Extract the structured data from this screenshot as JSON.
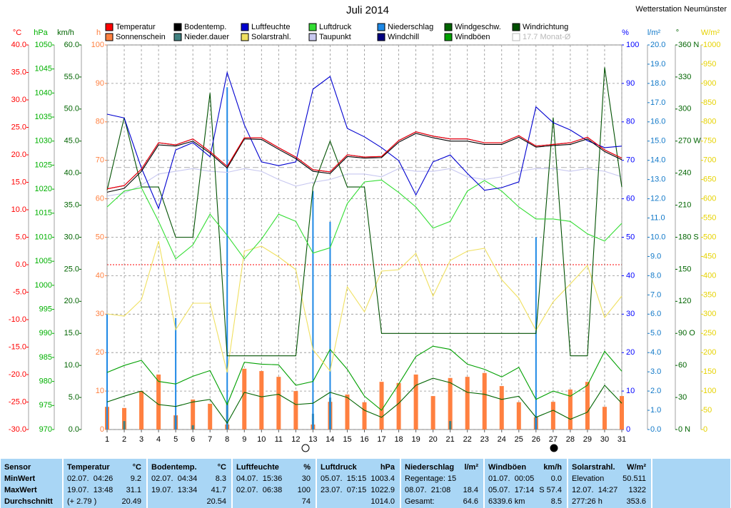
{
  "chart_data": {
    "type": "line",
    "title": "Juli 2014",
    "subtitle": "Wetterstation Neumünster",
    "x": [
      1,
      2,
      3,
      4,
      5,
      6,
      7,
      8,
      9,
      10,
      11,
      12,
      13,
      14,
      15,
      16,
      17,
      18,
      19,
      20,
      21,
      22,
      23,
      24,
      25,
      26,
      27,
      28,
      29,
      30,
      31
    ],
    "xlim": [
      1,
      31
    ],
    "axes": [
      {
        "unit": "°C",
        "color": "#ff0000",
        "lim": [
          -30,
          40
        ],
        "zero_line": true,
        "ticks": [
          {
            "value": -30,
            "label": "-30.0"
          },
          {
            "value": -25,
            "label": "-25.0"
          },
          {
            "value": -20,
            "label": "-20.0"
          },
          {
            "value": -15,
            "label": "-15.0"
          },
          {
            "value": -10,
            "label": "-10.0"
          },
          {
            "value": -5,
            "label": "-5.0"
          },
          {
            "value": 0,
            "label": "0.0"
          },
          {
            "value": 5,
            "label": "5.0"
          },
          {
            "value": 10,
            "label": "10.0"
          },
          {
            "value": 15,
            "label": "15.0"
          },
          {
            "value": 20,
            "label": "20.0"
          },
          {
            "value": 25,
            "label": "25.0"
          },
          {
            "value": 30,
            "label": "30.0"
          },
          {
            "value": 35,
            "label": "35.0"
          },
          {
            "value": 40,
            "label": "40.0"
          }
        ]
      },
      {
        "unit": "hPa",
        "color": "#00b000",
        "lim": [
          970,
          1050
        ],
        "ticks": [
          970,
          975,
          980,
          985,
          990,
          995,
          1000,
          1005,
          1010,
          1015,
          1020,
          1025,
          1030,
          1035,
          1040,
          1045,
          1050
        ]
      },
      {
        "unit": "km/h",
        "color": "#006400",
        "lim": [
          0,
          60
        ],
        "ticks": [
          {
            "value": 0,
            "label": "0.0"
          },
          {
            "value": 5,
            "label": "5.0"
          },
          {
            "value": 10,
            "label": "10.0"
          },
          {
            "value": 15,
            "label": "15.0"
          },
          {
            "value": 20,
            "label": "20.0"
          },
          {
            "value": 25,
            "label": "25.0"
          },
          {
            "value": 30,
            "label": "30.0"
          },
          {
            "value": 35,
            "label": "35.0"
          },
          {
            "value": 40,
            "label": "40.0"
          },
          {
            "value": 45,
            "label": "45.0"
          },
          {
            "value": 50,
            "label": "50.0"
          },
          {
            "value": 55,
            "label": "55.0"
          },
          {
            "value": 60,
            "label": "60.0"
          }
        ]
      },
      {
        "unit": "h",
        "color": "#ff8040",
        "lim": [
          0,
          100
        ],
        "grid": true,
        "ticks": [
          0,
          10,
          20,
          30,
          40,
          50,
          60,
          70,
          80,
          90,
          100
        ]
      },
      {
        "unit": "%",
        "color": "#0000ff",
        "lim": [
          0,
          100
        ],
        "ticks": [
          0,
          10,
          20,
          30,
          40,
          50,
          60,
          70,
          80,
          90,
          100
        ]
      },
      {
        "unit": "l/m²",
        "color": "#1078c8",
        "lim": [
          0,
          20
        ],
        "ticks": [
          {
            "value": 0,
            "label": "0.0"
          },
          {
            "value": 1,
            "label": "1.0"
          },
          {
            "value": 2,
            "label": "2.0"
          },
          {
            "value": 3,
            "label": "3.0"
          },
          {
            "value": 4,
            "label": "4.0"
          },
          {
            "value": 5,
            "label": "5.0"
          },
          {
            "value": 6,
            "label": "6.0"
          },
          {
            "value": 7,
            "label": "7.0"
          },
          {
            "value": 8,
            "label": "8.0"
          },
          {
            "value": 9,
            "label": "9.0"
          },
          {
            "value": 10,
            "label": "10.0"
          },
          {
            "value": 11,
            "label": "11.0"
          },
          {
            "value": 12,
            "label": "12.0"
          },
          {
            "value": 13,
            "label": "13.0"
          },
          {
            "value": 14,
            "label": "14.0"
          },
          {
            "value": 15,
            "label": "15.0"
          },
          {
            "value": 16,
            "label": "16.0"
          },
          {
            "value": 17,
            "label": "17.0"
          },
          {
            "value": 18,
            "label": "18.0"
          },
          {
            "value": 19,
            "label": "19.0"
          },
          {
            "value": 20,
            "label": "20.0"
          }
        ]
      },
      {
        "unit": "°",
        "color": "#006400",
        "lim": [
          0,
          360
        ],
        "ticks": [
          {
            "value": 0,
            "label": "0 N"
          },
          30,
          60,
          {
            "value": 90,
            "label": "90 O"
          },
          120,
          150,
          {
            "value": 180,
            "label": "180 S"
          },
          210,
          240,
          {
            "value": 270,
            "label": "270 W"
          },
          300,
          330,
          {
            "value": 360,
            "label": "360 N"
          }
        ]
      },
      {
        "unit": "W/m²",
        "color": "#e6d200",
        "lim": [
          0,
          1000
        ],
        "ticks": [
          0,
          50,
          100,
          150,
          200,
          250,
          300,
          350,
          400,
          450,
          500,
          550,
          600,
          650,
          700,
          750,
          800,
          850,
          900,
          950,
          1000
        ]
      }
    ],
    "series": [
      {
        "name": "Temperatur",
        "color": "#ff0000",
        "axis": "°C",
        "kind": "line",
        "values": [
          13.8,
          14.4,
          17.4,
          22.2,
          21.8,
          22.9,
          20.6,
          17.9,
          23.1,
          23.1,
          21.3,
          19.6,
          17.3,
          16.9,
          20.0,
          19.6,
          19.7,
          22.6,
          24.2,
          23.4,
          22.9,
          22.9,
          22.2,
          22.2,
          23.5,
          21.6,
          21.9,
          22.2,
          23.2,
          20.9,
          19.4
        ]
      },
      {
        "name": "Bodentemp.",
        "color": "#000000",
        "axis": "°C",
        "kind": "line",
        "values": [
          13.2,
          13.9,
          17.0,
          21.8,
          21.6,
          22.5,
          20.3,
          17.6,
          22.9,
          22.8,
          21.0,
          19.3,
          17.0,
          16.6,
          19.7,
          19.4,
          19.5,
          22.3,
          23.9,
          23.1,
          22.5,
          22.5,
          21.9,
          21.9,
          23.2,
          21.4,
          21.7,
          21.9,
          22.9,
          20.6,
          19.1
        ]
      },
      {
        "name": "Luftfeuchte",
        "color": "#0000d0",
        "axis": "%",
        "kind": "line",
        "values": [
          82.0,
          81.0,
          68.0,
          57.5,
          72.7,
          74.6,
          70.9,
          92.8,
          79.2,
          69.6,
          68.6,
          69.6,
          88.5,
          91.8,
          78.3,
          76.1,
          73.3,
          69.9,
          61.0,
          69.6,
          71.4,
          66.6,
          62.2,
          62.9,
          64.4,
          83.9,
          79.8,
          77.9,
          75.1,
          73.3,
          73.7
        ]
      },
      {
        "name": "Luftdruck",
        "color": "#33dd33",
        "axis": "hPa",
        "kind": "line",
        "values": [
          1016.3,
          1019.6,
          1020.3,
          1013.3,
          1005.5,
          1008.4,
          1014.8,
          1010.4,
          1005.5,
          1009.6,
          1014.8,
          1013.3,
          1006.7,
          1007.8,
          1017.0,
          1021.5,
          1021.9,
          1019.3,
          1016.3,
          1011.9,
          1013.3,
          1019.6,
          1021.8,
          1019.6,
          1016.3,
          1013.8,
          1013.8,
          1013.3,
          1010.7,
          1009.2,
          1012.9
        ]
      },
      {
        "name": "Niederschlag",
        "color": "#1e88e5",
        "axis": "l/m²",
        "kind": "bar",
        "values": [
          6.0,
          null,
          null,
          null,
          5.8,
          null,
          null,
          17.8,
          null,
          null,
          null,
          null,
          12.4,
          10.8,
          null,
          null,
          null,
          null,
          null,
          null,
          null,
          null,
          null,
          null,
          null,
          10.0,
          null,
          null,
          null,
          null,
          null
        ]
      },
      {
        "name": "Windgeschw.",
        "color": "#006400",
        "axis": "km/h",
        "kind": "line",
        "values": [
          4.3,
          5.2,
          6.0,
          3.9,
          3.6,
          4.3,
          4.7,
          1.0,
          5.8,
          5.1,
          5.5,
          3.9,
          4.1,
          5.8,
          5.0,
          3.0,
          1.9,
          4.1,
          6.9,
          8.0,
          7.3,
          5.8,
          5.5,
          4.7,
          5.2,
          1.9,
          3.0,
          1.6,
          2.7,
          6.9,
          4.1
        ]
      },
      {
        "name": "Windrichtung",
        "color": "#005000",
        "axis": "°",
        "kind": "line",
        "values": [
          224,
          292,
          227,
          227,
          180,
          180,
          315,
          69,
          69,
          69,
          69,
          69,
          227,
          270,
          227,
          227,
          90,
          90,
          90,
          90,
          90,
          90,
          90,
          90,
          90,
          90,
          292,
          69,
          69,
          339,
          227
        ]
      },
      {
        "name": "Sonnenschein",
        "color": "#ff8040",
        "axis": "h",
        "kind": "bar",
        "values": [
          5.9,
          5.6,
          10.0,
          14.3,
          3.7,
          7.8,
          6.7,
          1.3,
          15.8,
          15.2,
          13.7,
          10.0,
          1.3,
          7.2,
          9.1,
          7.1,
          12.4,
          12.1,
          14.3,
          8.7,
          13.4,
          13.7,
          14.7,
          11.3,
          7.1,
          3.2,
          7.2,
          10.4,
          12.4,
          5.9,
          8.7
        ]
      },
      {
        "name": "Nieder.dauer",
        "color": "#408080",
        "axis": "h",
        "kind": "bar",
        "values": [
          null,
          2.2,
          null,
          null,
          3.5,
          1.1,
          null,
          6.9,
          null,
          null,
          null,
          null,
          4.1,
          8.3,
          null,
          null,
          null,
          null,
          null,
          null,
          2.2,
          null,
          null,
          null,
          null,
          3.5,
          null,
          null,
          null,
          null,
          null
        ]
      },
      {
        "name": "Solarstrahl.",
        "color": "#f0e060",
        "axis": "W/m²",
        "kind": "line",
        "values": [
          300.6,
          295.0,
          337.7,
          489.8,
          259.7,
          328.4,
          328.4,
          148.4,
          463.8,
          476.8,
          449.0,
          415.6,
          207.8,
          152.1,
          371.0,
          306.1,
          411.9,
          415.6,
          458.3,
          346.9,
          439.7,
          463.8,
          471.2,
          389.6,
          341.4,
          257.9,
          332.1,
          378.5,
          426.7,
          291.3,
          346.9
        ]
      },
      {
        "name": "Taupunkt",
        "color": "#c8c8f0",
        "axis": "°C",
        "kind": "line",
        "values": [
          12.5,
          13.0,
          14.5,
          16.5,
          17.0,
          17.5,
          17.0,
          16.8,
          17.5,
          17.0,
          15.5,
          14.3,
          15.0,
          15.5,
          16.5,
          16.5,
          16.0,
          17.5,
          17.0,
          17.0,
          17.5,
          16.0,
          15.5,
          16.0,
          17.0,
          17.5,
          17.5,
          17.0,
          17.5,
          17.0,
          16.0
        ]
      },
      {
        "name": "Windchill",
        "color": "#000080",
        "axis": "°C",
        "kind": "line",
        "values": [
          13.8,
          14.4,
          17.4,
          22.2,
          21.8,
          22.9,
          20.6,
          17.9,
          23.1,
          23.1,
          21.3,
          19.6,
          17.3,
          16.9,
          20.0,
          19.6,
          19.7,
          22.6,
          24.2,
          23.4,
          22.9,
          22.9,
          22.2,
          22.2,
          23.5,
          21.6,
          21.9,
          22.2,
          23.2,
          20.9,
          19.4
        ]
      },
      {
        "name": "Windböen",
        "color": "#00a000",
        "axis": "km/h",
        "kind": "line",
        "values": [
          8.9,
          10.0,
          10.8,
          7.5,
          7.1,
          8.3,
          9.2,
          3.9,
          10.5,
          10.2,
          10.1,
          6.9,
          7.5,
          12.5,
          9.4,
          5.2,
          3.0,
          7.1,
          11.4,
          13.0,
          12.5,
          10.2,
          9.4,
          8.2,
          9.7,
          4.7,
          6.0,
          5.2,
          6.9,
          12.2,
          9.1
        ]
      },
      {
        "name": "17.7 Monat-Ø",
        "color": "#b8b8b8",
        "axis": "°C",
        "kind": "hline",
        "value": 17.7
      }
    ]
  },
  "table": {
    "sensor": {
      "title": "Sensor",
      "rows": [
        "MinWert",
        "MaxWert",
        "Durchschnitt"
      ]
    },
    "columns": [
      {
        "title": "Temperatur",
        "unit": "°C",
        "rows": [
          [
            "02.07.  04:26",
            "9.2"
          ],
          [
            "19.07.  13:48",
            "31.1"
          ],
          [
            "(+ 2.79 )",
            "20.49"
          ]
        ]
      },
      {
        "title": "Bodentemp.",
        "unit": "°C",
        "rows": [
          [
            "02.07.  04:34",
            "8.3"
          ],
          [
            "19.07.  13:34",
            "41.7"
          ],
          [
            null,
            "20.54"
          ]
        ]
      },
      {
        "title": "Luftfeuchte",
        "unit": "%",
        "rows": [
          [
            "04.07.  15:36",
            "30"
          ],
          [
            "02.07.  06:38",
            "100"
          ],
          [
            null,
            "74"
          ]
        ]
      },
      {
        "title": "Luftdruck",
        "unit": "hPa",
        "rows": [
          [
            "05.07.  15:15",
            "1003.4"
          ],
          [
            "23.07.  07:15",
            "1022.9"
          ],
          [
            null,
            "1014.0"
          ]
        ]
      },
      {
        "title": "Niederschlag",
        "unit": "l/m²",
        "rows": [
          [
            "Regentage: 15",
            null
          ],
          [
            "08.07.  21:08",
            "18.4"
          ],
          [
            "Gesamt:",
            "64.6"
          ]
        ]
      },
      {
        "title": "Windböen",
        "unit": "km/h",
        "rows": [
          [
            "01.07.  00:05",
            "0.0"
          ],
          [
            "05.07.  17:14",
            "S 57.4"
          ],
          [
            "6339.6 km",
            "8.5"
          ]
        ]
      },
      {
        "title": "Solarstrahl.",
        "unit": "W/m²",
        "rows": [
          [
            "Elevation",
            "50.511"
          ],
          [
            "12.07.  14:27",
            "1322"
          ],
          [
            "277:26 h",
            "353.6"
          ]
        ]
      }
    ]
  }
}
